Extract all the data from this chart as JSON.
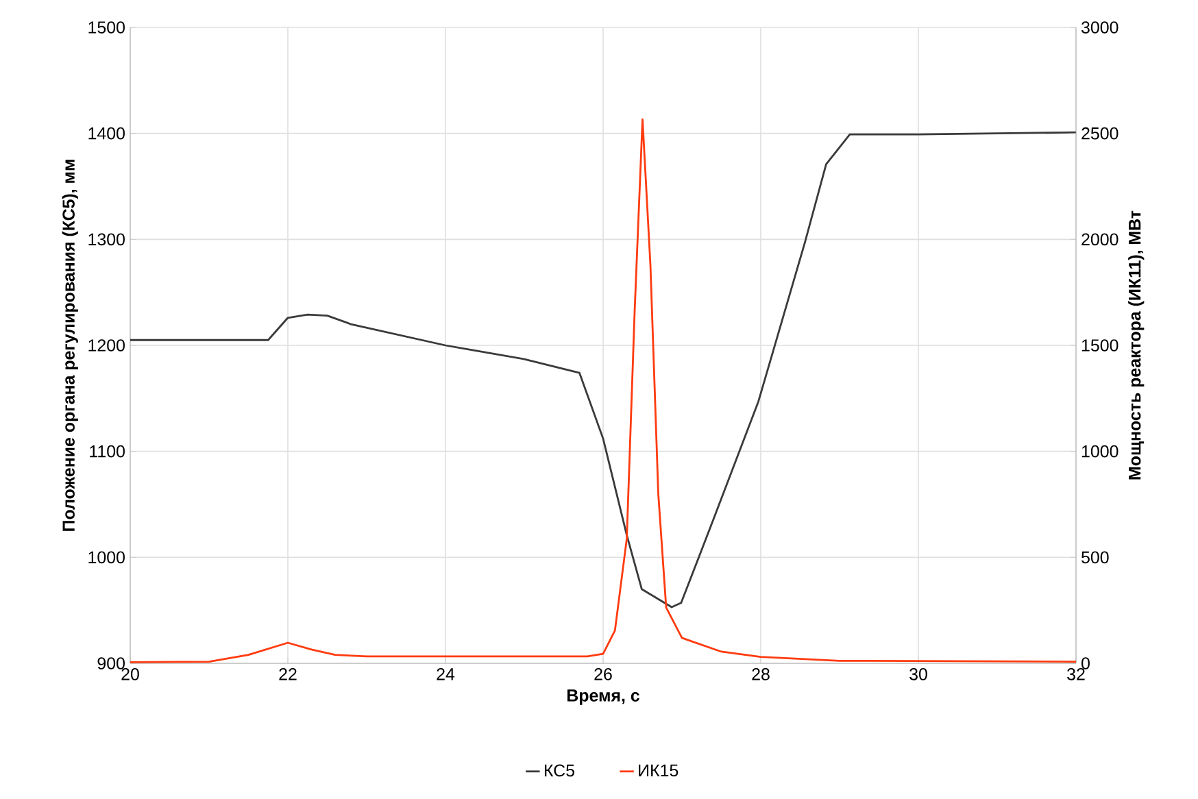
{
  "chart_data": {
    "type": "line",
    "xlabel": "Время, с",
    "ylabel": "Положение органа регулирования (КС5), мм",
    "y2label": "Мощность реактора (ИК11), МВт",
    "xlim": [
      20,
      32
    ],
    "xticks": [
      20,
      22,
      24,
      26,
      28,
      30,
      32
    ],
    "ylim": [
      900,
      1500
    ],
    "yticks": [
      900,
      1000,
      1100,
      1200,
      1300,
      1400,
      1500
    ],
    "y2lim": [
      0,
      3000
    ],
    "y2ticks": [
      0,
      500,
      1000,
      1500,
      2000,
      2500,
      3000
    ],
    "grid": true,
    "legend": "bottom",
    "marker": "none",
    "line_style": "solid",
    "series": [
      {
        "name": "КС5",
        "color": "#3a3a3a",
        "x": [
          20,
          21.75,
          22.0,
          22.25,
          22.5,
          22.8,
          24,
          25,
          25.7,
          26.0,
          26.3,
          26.49,
          26.87,
          26.99,
          27.39,
          27.97,
          28.56,
          28.83,
          29.13,
          30,
          31,
          32
        ],
        "values": [
          1205,
          1205,
          1226,
          1229,
          1228,
          1220,
          1200,
          1187,
          1174,
          1112,
          1021,
          970,
          953,
          957,
          1034,
          1147,
          1297,
          1371,
          1399,
          1399,
          1400,
          1401
        ]
      },
      {
        "name": "ИК15",
        "color": "#ff3b0f",
        "axis": "y2",
        "x": [
          20,
          21,
          21.5,
          22.0,
          22.3,
          22.6,
          23,
          25.8,
          26.0,
          26.15,
          26.3,
          26.4,
          26.5,
          26.6,
          26.7,
          26.8,
          27.0,
          27.5,
          28,
          29,
          32
        ],
        "values": [
          5,
          8,
          40,
          97,
          65,
          40,
          33,
          33,
          45,
          155,
          587,
          1660,
          2566,
          1880,
          800,
          263,
          120,
          55,
          30,
          12,
          8
        ]
      }
    ]
  }
}
